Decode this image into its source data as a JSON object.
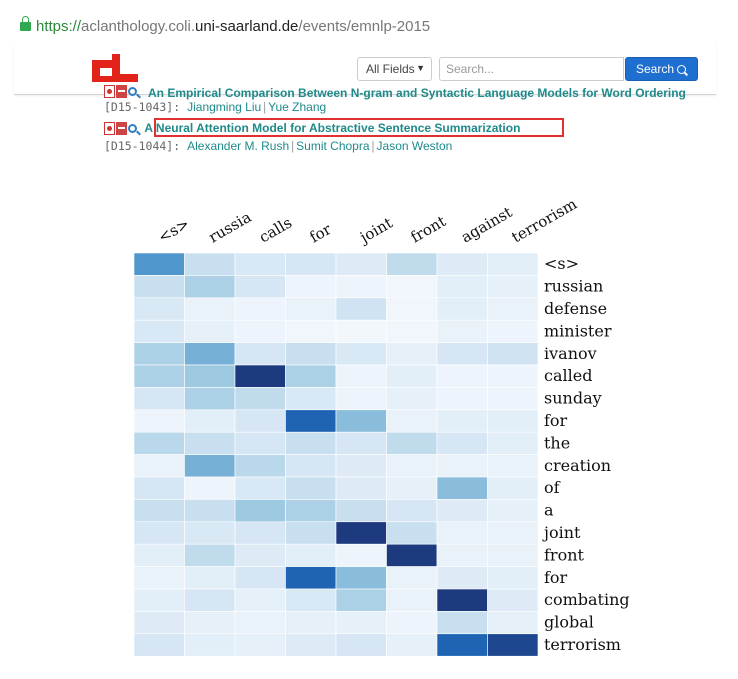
{
  "browser": {
    "url_scheme": "https://",
    "url_host_prefix": "aclanthology.coli.",
    "url_domain": "uni-saarland.de",
    "url_path": "/events/emnlp-2015"
  },
  "header": {
    "logo": "acl-logo",
    "field_select": "All Fields",
    "search_placeholder": "Search...",
    "search_button": "Search"
  },
  "papers": [
    {
      "title": "An Empirical Comparison Between N-gram and Syntactic Language Models for Word Ordering",
      "id": "[D15-1043]:",
      "authors": [
        "Jiangming Liu",
        "Yue Zhang"
      ]
    },
    {
      "title": "A Neural Attention Model for Abstractive Sentence Summarization",
      "id": "[D15-1044]:",
      "authors": [
        "Alexander M. Rush",
        "Sumit Chopra",
        "Jason Weston"
      ]
    }
  ],
  "chart_data": {
    "type": "heatmap",
    "x": [
      "<s>",
      "russia",
      "calls",
      "for",
      "joint",
      "front",
      "against",
      "terrorism"
    ],
    "y": [
      "<s>",
      "russian",
      "defense",
      "minister",
      "ivanov",
      "called",
      "sunday",
      "for",
      "the",
      "creation",
      "of",
      "a",
      "joint",
      "front",
      "for",
      "combating",
      "global",
      "terrorism"
    ],
    "values": [
      [
        0.6,
        0.25,
        0.18,
        0.2,
        0.15,
        0.28,
        0.15,
        0.12
      ],
      [
        0.25,
        0.35,
        0.2,
        0.05,
        0.05,
        0.03,
        0.12,
        0.1
      ],
      [
        0.18,
        0.08,
        0.05,
        0.08,
        0.22,
        0.03,
        0.12,
        0.08
      ],
      [
        0.18,
        0.1,
        0.05,
        0.03,
        0.02,
        0.03,
        0.08,
        0.05
      ],
      [
        0.35,
        0.5,
        0.2,
        0.25,
        0.18,
        0.1,
        0.2,
        0.22
      ],
      [
        0.35,
        0.4,
        0.95,
        0.35,
        0.05,
        0.12,
        0.05,
        0.05
      ],
      [
        0.2,
        0.35,
        0.28,
        0.18,
        0.05,
        0.1,
        0.05,
        0.05
      ],
      [
        0.05,
        0.12,
        0.2,
        0.8,
        0.45,
        0.08,
        0.12,
        0.12
      ],
      [
        0.3,
        0.25,
        0.2,
        0.25,
        0.2,
        0.28,
        0.2,
        0.12
      ],
      [
        0.08,
        0.5,
        0.3,
        0.2,
        0.15,
        0.08,
        0.08,
        0.08
      ],
      [
        0.2,
        0.05,
        0.18,
        0.25,
        0.15,
        0.1,
        0.45,
        0.12
      ],
      [
        0.25,
        0.25,
        0.4,
        0.35,
        0.25,
        0.2,
        0.15,
        0.1
      ],
      [
        0.2,
        0.18,
        0.2,
        0.25,
        0.95,
        0.25,
        0.08,
        0.08
      ],
      [
        0.12,
        0.28,
        0.15,
        0.12,
        0.05,
        0.95,
        0.08,
        0.08
      ],
      [
        0.08,
        0.12,
        0.2,
        0.8,
        0.45,
        0.08,
        0.15,
        0.12
      ],
      [
        0.12,
        0.2,
        0.1,
        0.18,
        0.35,
        0.08,
        0.95,
        0.15
      ],
      [
        0.15,
        0.1,
        0.08,
        0.1,
        0.1,
        0.05,
        0.25,
        0.1
      ],
      [
        0.2,
        0.12,
        0.1,
        0.15,
        0.2,
        0.1,
        0.8,
        0.9
      ]
    ],
    "colormap": "Blues",
    "colors": {
      "low": "#f5f9fd",
      "high": "#1c3a78"
    }
  }
}
